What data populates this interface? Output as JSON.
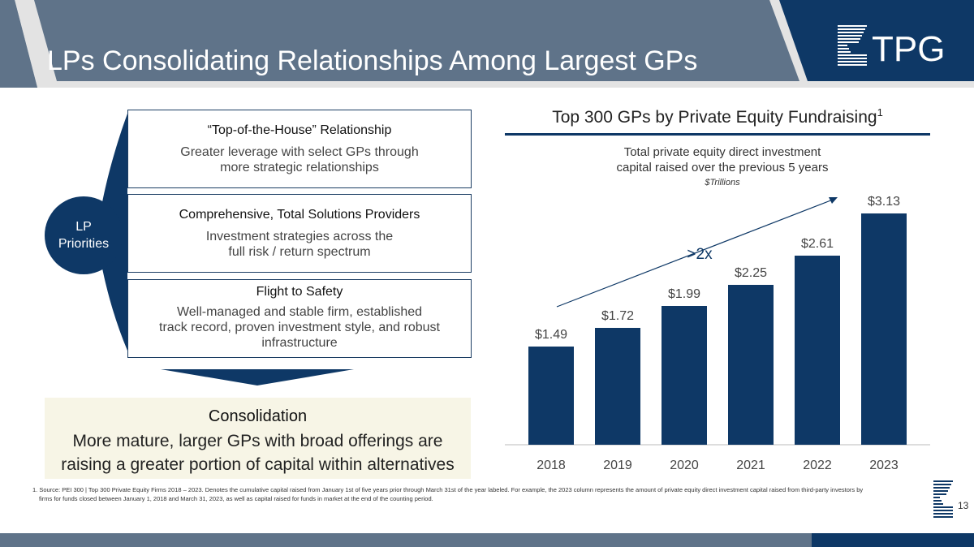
{
  "header": {
    "title": "LPs Consolidating Relationships Among Largest GPs",
    "logo_text": "TPG"
  },
  "left": {
    "priorities_label": [
      "LP",
      "Priorities"
    ],
    "boxes": [
      {
        "heading": "“Top-of-the-House” Relationship",
        "body": [
          "Greater leverage with select GPs through",
          "more strategic relationships"
        ]
      },
      {
        "heading": "Comprehensive, Total Solutions Providers",
        "body": [
          "Investment strategies across the",
          "full risk / return spectrum"
        ]
      },
      {
        "heading": "Flight to Safety",
        "body": [
          "Well-managed and stable firm, established",
          "track record, proven investment style, and robust",
          "infrastructure"
        ]
      }
    ],
    "consolidation": {
      "heading": "Consolidation",
      "body": [
        "More mature, larger GPs with broad offerings are",
        "raising a greater portion of capital within alternatives"
      ]
    }
  },
  "chart_data": {
    "type": "bar",
    "title": "Top 300 GPs by Private Equity Fundraising",
    "title_superscript": "1",
    "subtitle": [
      "Total private equity direct investment",
      "capital raised over the previous 5 years"
    ],
    "unit": "$Trillions",
    "categories": [
      "2018",
      "2019",
      "2020",
      "2021",
      "2022",
      "2023"
    ],
    "values": [
      1.49,
      1.72,
      1.99,
      2.25,
      2.61,
      3.13
    ],
    "data_labels": [
      "$1.49",
      "$1.72",
      "$1.99",
      "$2.25",
      "$2.61",
      "$3.13"
    ],
    "annotation": ">2x",
    "bar_color": "#0e3866",
    "grid": false
  },
  "footnote": {
    "line1": "1. Source: PEI 300 | Top 300 Private Equity Firms 2018 – 2023. Denotes the cumulative capital raised from January 1st of five years prior through March 31st of the year labeled. For example, the 2023 column represents the amount of private equity direct investment capital raised from third-party investors by",
    "line2": "firms for funds closed between January 1, 2018 and March 31, 2023, as well as capital raised for funds in market at the end of the counting period."
  },
  "page_number": "13",
  "colors": {
    "navy": "#0e3866",
    "slate": "#5f7389",
    "cream": "#f7f5e6"
  }
}
